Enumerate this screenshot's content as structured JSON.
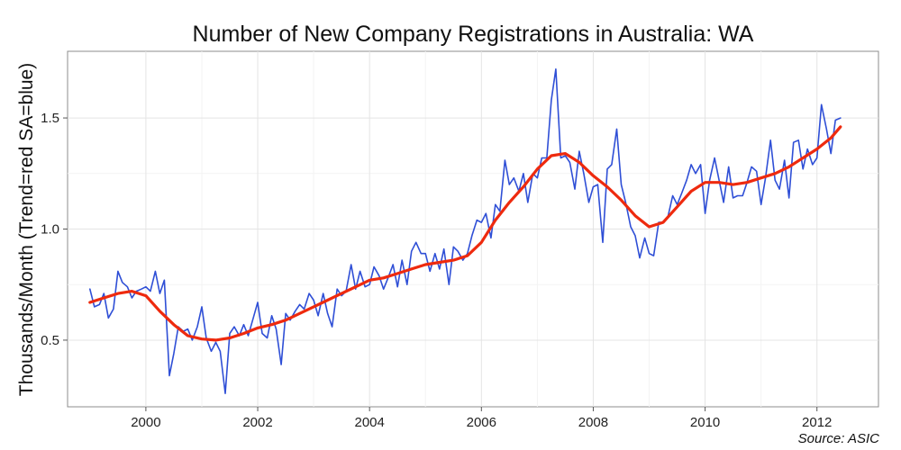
{
  "chart_data": {
    "type": "line",
    "title": "Number of New Company Registrations in Australia: WA",
    "ylabel": "Thousands/Month (Trend=red SA=blue)",
    "xlabel": "",
    "source": "Source: ASIC",
    "xlim": [
      1998.6,
      2013.1
    ],
    "ylim": [
      0.2,
      1.8
    ],
    "xticks": [
      2000,
      2002,
      2004,
      2006,
      2008,
      2010,
      2012
    ],
    "yticks": [
      0.5,
      1.0,
      1.5
    ],
    "ytick_labels": [
      "0.5",
      "1.0",
      "1.5"
    ],
    "grid": true,
    "series": [
      {
        "color": "#2f4fd6",
        "x": [
          1999.0,
          1999.08,
          1999.17,
          1999.25,
          1999.33,
          1999.42,
          1999.5,
          1999.58,
          1999.67,
          1999.75,
          1999.83,
          1999.92,
          2000.0,
          2000.08,
          2000.17,
          2000.25,
          2000.33,
          2000.42,
          2000.5,
          2000.58,
          2000.67,
          2000.75,
          2000.83,
          2000.92,
          2001.0,
          2001.08,
          2001.17,
          2001.25,
          2001.33,
          2001.42,
          2001.5,
          2001.58,
          2001.67,
          2001.75,
          2001.83,
          2001.92,
          2002.0,
          2002.08,
          2002.17,
          2002.25,
          2002.33,
          2002.42,
          2002.5,
          2002.58,
          2002.67,
          2002.75,
          2002.83,
          2002.92,
          2003.0,
          2003.08,
          2003.17,
          2003.25,
          2003.33,
          2003.42,
          2003.5,
          2003.58,
          2003.67,
          2003.75,
          2003.83,
          2003.92,
          2004.0,
          2004.08,
          2004.17,
          2004.25,
          2004.33,
          2004.42,
          2004.5,
          2004.58,
          2004.67,
          2004.75,
          2004.83,
          2004.92,
          2005.0,
          2005.08,
          2005.17,
          2005.25,
          2005.33,
          2005.42,
          2005.5,
          2005.58,
          2005.67,
          2005.75,
          2005.83,
          2005.92,
          2006.0,
          2006.08,
          2006.17,
          2006.25,
          2006.33,
          2006.42,
          2006.5,
          2006.58,
          2006.67,
          2006.75,
          2006.83,
          2006.92,
          2007.0,
          2007.08,
          2007.17,
          2007.25,
          2007.33,
          2007.42,
          2007.5,
          2007.58,
          2007.67,
          2007.75,
          2007.83,
          2007.92,
          2008.0,
          2008.08,
          2008.17,
          2008.25,
          2008.33,
          2008.42,
          2008.5,
          2008.58,
          2008.67,
          2008.75,
          2008.83,
          2008.92,
          2009.0,
          2009.08,
          2009.17,
          2009.25,
          2009.33,
          2009.42,
          2009.5,
          2009.58,
          2009.67,
          2009.75,
          2009.83,
          2009.92,
          2010.0,
          2010.08,
          2010.17,
          2010.25,
          2010.33,
          2010.42,
          2010.5,
          2010.58,
          2010.67,
          2010.75,
          2010.83,
          2010.92,
          2011.0,
          2011.08,
          2011.17,
          2011.25,
          2011.33,
          2011.42,
          2011.5,
          2011.58,
          2011.67,
          2011.75,
          2011.83,
          2011.92,
          2012.0,
          2012.08,
          2012.17,
          2012.25,
          2012.33,
          2012.42
        ],
        "values": [
          0.73,
          0.65,
          0.66,
          0.71,
          0.6,
          0.64,
          0.81,
          0.76,
          0.74,
          0.69,
          0.72,
          0.73,
          0.74,
          0.72,
          0.81,
          0.71,
          0.77,
          0.34,
          0.44,
          0.56,
          0.54,
          0.55,
          0.5,
          0.56,
          0.65,
          0.51,
          0.45,
          0.49,
          0.45,
          0.26,
          0.53,
          0.56,
          0.52,
          0.57,
          0.52,
          0.6,
          0.67,
          0.53,
          0.51,
          0.61,
          0.55,
          0.39,
          0.62,
          0.59,
          0.63,
          0.66,
          0.64,
          0.71,
          0.68,
          0.61,
          0.71,
          0.62,
          0.56,
          0.73,
          0.7,
          0.72,
          0.84,
          0.73,
          0.81,
          0.74,
          0.75,
          0.83,
          0.79,
          0.73,
          0.78,
          0.84,
          0.74,
          0.86,
          0.75,
          0.9,
          0.94,
          0.89,
          0.89,
          0.81,
          0.89,
          0.82,
          0.91,
          0.75,
          0.92,
          0.9,
          0.86,
          0.89,
          0.97,
          1.04,
          1.03,
          1.07,
          0.96,
          1.11,
          1.08,
          1.31,
          1.2,
          1.23,
          1.17,
          1.25,
          1.12,
          1.25,
          1.23,
          1.32,
          1.32,
          1.58,
          1.72,
          1.32,
          1.33,
          1.3,
          1.18,
          1.35,
          1.25,
          1.12,
          1.19,
          1.2,
          0.94,
          1.27,
          1.29,
          1.45,
          1.2,
          1.12,
          1.01,
          0.97,
          0.87,
          0.96,
          0.89,
          0.88,
          1.03,
          1.03,
          1.05,
          1.15,
          1.11,
          1.16,
          1.22,
          1.29,
          1.25,
          1.29,
          1.07,
          1.22,
          1.32,
          1.22,
          1.12,
          1.28,
          1.14,
          1.15,
          1.15,
          1.21,
          1.28,
          1.26,
          1.11,
          1.23,
          1.4,
          1.22,
          1.18,
          1.31,
          1.14,
          1.39,
          1.4,
          1.27,
          1.36,
          1.29,
          1.32,
          1.56,
          1.45,
          1.34,
          1.49,
          1.5
        ]
      },
      {
        "color": "#ee2a0e",
        "x": [
          1999.0,
          1999.25,
          1999.5,
          1999.75,
          2000.0,
          2000.25,
          2000.5,
          2000.75,
          2001.0,
          2001.25,
          2001.5,
          2001.75,
          2002.0,
          2002.25,
          2002.5,
          2002.75,
          2003.0,
          2003.25,
          2003.5,
          2003.75,
          2004.0,
          2004.25,
          2004.5,
          2004.75,
          2005.0,
          2005.25,
          2005.5,
          2005.75,
          2006.0,
          2006.25,
          2006.5,
          2006.75,
          2007.0,
          2007.25,
          2007.5,
          2007.75,
          2008.0,
          2008.25,
          2008.5,
          2008.75,
          2009.0,
          2009.25,
          2009.5,
          2009.75,
          2010.0,
          2010.25,
          2010.5,
          2010.75,
          2011.0,
          2011.25,
          2011.5,
          2011.75,
          2012.0,
          2012.25,
          2012.42
        ],
        "values": [
          0.67,
          0.69,
          0.71,
          0.72,
          0.7,
          0.63,
          0.57,
          0.52,
          0.505,
          0.5,
          0.51,
          0.53,
          0.555,
          0.57,
          0.59,
          0.62,
          0.65,
          0.68,
          0.71,
          0.74,
          0.77,
          0.78,
          0.8,
          0.82,
          0.84,
          0.85,
          0.86,
          0.88,
          0.94,
          1.04,
          1.12,
          1.19,
          1.27,
          1.33,
          1.34,
          1.3,
          1.24,
          1.19,
          1.13,
          1.06,
          1.01,
          1.03,
          1.1,
          1.17,
          1.21,
          1.21,
          1.2,
          1.21,
          1.23,
          1.25,
          1.28,
          1.32,
          1.36,
          1.41,
          1.46
        ]
      }
    ]
  }
}
